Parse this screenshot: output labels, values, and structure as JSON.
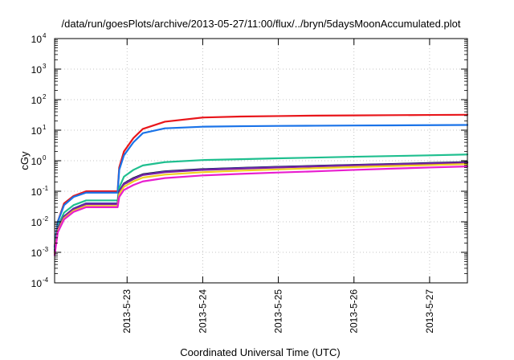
{
  "chart_data": {
    "type": "line",
    "title": "/data/run/goesPlots/archive/2013-05-27/11:00/flux/../bryn/5daysMoonAccumulated.plot",
    "xlabel": "Coordinated Universal Time (UTC)",
    "ylabel": "cGy",
    "x_scale": "time",
    "y_scale": "log",
    "xlim": [
      "2013-05-22T01:00",
      "2013-05-27T12:00"
    ],
    "ylim": [
      0.0001,
      10000
    ],
    "x_ticks": [
      "2013-5-23",
      "2013-5-24",
      "2013-5-25",
      "2013-5-26",
      "2013-5-27"
    ],
    "y_ticks": [
      {
        "base": "10",
        "exp": "-4"
      },
      {
        "base": "10",
        "exp": "-3"
      },
      {
        "base": "10",
        "exp": "-2"
      },
      {
        "base": "10",
        "exp": "-1"
      },
      {
        "base": "10",
        "exp": "0"
      },
      {
        "base": "10",
        "exp": "1"
      },
      {
        "base": "10",
        "exp": "2"
      },
      {
        "base": "10",
        "exp": "3"
      },
      {
        "base": "10",
        "exp": "4"
      }
    ],
    "grid": true,
    "legend": "none",
    "x": [
      "2013-05-22T01:00",
      "2013-05-22T02:00",
      "2013-05-22T04:00",
      "2013-05-22T07:00",
      "2013-05-22T11:00",
      "2013-05-22T15:00",
      "2013-05-22T16:00",
      "2013-05-22T21:00",
      "2013-05-22T21:30",
      "2013-05-22T23:00",
      "2013-05-23T02:00",
      "2013-05-23T05:00",
      "2013-05-23T12:00",
      "2013-05-24T00:00",
      "2013-05-24T12:00",
      "2013-05-25T00:00",
      "2013-05-25T12:00",
      "2013-05-26T00:00",
      "2013-05-26T12:00",
      "2013-05-27T00:00",
      "2013-05-27T12:00"
    ],
    "series": [
      {
        "color": "#e8161b",
        "values": [
          0.0015,
          0.01,
          0.04,
          0.07,
          0.1,
          0.1,
          0.1,
          0.1,
          0.6,
          2.0,
          5.5,
          11,
          19,
          26,
          28,
          29,
          30,
          30.5,
          31,
          31.5,
          32
        ]
      },
      {
        "color": "#1a73e8",
        "values": [
          0.0015,
          0.01,
          0.035,
          0.065,
          0.09,
          0.09,
          0.09,
          0.09,
          0.5,
          1.5,
          4.0,
          8.0,
          11.5,
          13,
          13.5,
          13.8,
          14,
          14.2,
          14.4,
          14.6,
          14.8
        ]
      },
      {
        "color": "#1fbf8f",
        "values": [
          0.0012,
          0.007,
          0.02,
          0.035,
          0.05,
          0.05,
          0.05,
          0.05,
          0.13,
          0.3,
          0.5,
          0.7,
          0.9,
          1.05,
          1.12,
          1.2,
          1.27,
          1.35,
          1.42,
          1.5,
          1.6
        ]
      },
      {
        "color": "#000000",
        "values": [
          0.001,
          0.006,
          0.015,
          0.027,
          0.04,
          0.04,
          0.04,
          0.04,
          0.1,
          0.18,
          0.27,
          0.36,
          0.45,
          0.53,
          0.58,
          0.63,
          0.68,
          0.73,
          0.78,
          0.84,
          0.9
        ]
      },
      {
        "color": "#3b3bb3",
        "values": [
          0.001,
          0.006,
          0.015,
          0.027,
          0.04,
          0.04,
          0.04,
          0.04,
          0.1,
          0.175,
          0.26,
          0.35,
          0.44,
          0.52,
          0.57,
          0.62,
          0.67,
          0.72,
          0.77,
          0.82,
          0.88
        ]
      },
      {
        "color": "#7a1fa2",
        "values": [
          0.001,
          0.006,
          0.015,
          0.026,
          0.038,
          0.038,
          0.038,
          0.038,
          0.095,
          0.17,
          0.25,
          0.34,
          0.42,
          0.5,
          0.55,
          0.6,
          0.65,
          0.7,
          0.75,
          0.8,
          0.86
        ]
      },
      {
        "color": "#f0d020",
        "values": [
          0.0009,
          0.005,
          0.013,
          0.023,
          0.033,
          0.033,
          0.033,
          0.033,
          0.08,
          0.14,
          0.21,
          0.28,
          0.35,
          0.42,
          0.47,
          0.52,
          0.57,
          0.62,
          0.67,
          0.72,
          0.78
        ]
      },
      {
        "color": "#e81ecf",
        "values": [
          0.0008,
          0.0045,
          0.012,
          0.021,
          0.03,
          0.03,
          0.03,
          0.03,
          0.065,
          0.11,
          0.16,
          0.21,
          0.27,
          0.33,
          0.37,
          0.41,
          0.45,
          0.5,
          0.55,
          0.6,
          0.65
        ]
      }
    ]
  }
}
